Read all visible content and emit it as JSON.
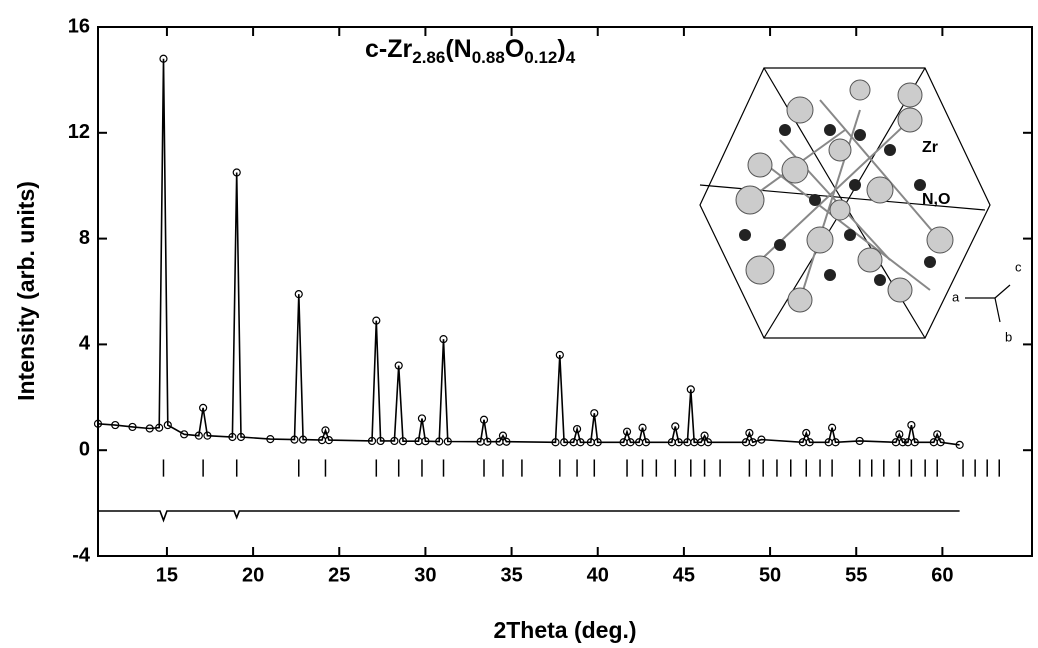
{
  "chart_data": {
    "type": "line",
    "title_parts": [
      "c-Zr",
      "2.86",
      "(N",
      "0.88",
      "O",
      "0.12",
      ")",
      "4"
    ],
    "xlabel": "2Theta (deg.)",
    "ylabel": "Intensity (arb. units)",
    "xlim": [
      11,
      65.2
    ],
    "ylim": [
      -4,
      16
    ],
    "xticks": [
      15,
      20,
      25,
      30,
      35,
      40,
      45,
      50,
      55,
      60
    ],
    "yticks": [
      -4,
      0,
      4,
      8,
      12,
      16
    ],
    "series": [
      {
        "color": "#000000",
        "x": [
          11,
          12,
          13,
          14,
          14.55,
          14.8,
          15.05,
          16,
          16.85,
          17.1,
          17.35,
          18.8,
          19.05,
          19.3,
          21,
          22.4,
          22.65,
          22.9,
          24,
          24.2,
          24.4,
          26.9,
          27.15,
          27.4,
          28.2,
          28.45,
          28.7,
          29.6,
          29.8,
          30,
          30.8,
          31.05,
          31.3,
          33.2,
          33.4,
          33.6,
          34.3,
          34.5,
          34.7,
          37.55,
          37.8,
          38.05,
          38.6,
          38.8,
          39,
          39.6,
          39.8,
          40,
          41.5,
          41.7,
          41.9,
          42.4,
          42.6,
          42.8,
          44.3,
          44.5,
          44.7,
          45.2,
          45.4,
          45.6,
          46,
          46.2,
          46.4,
          48.6,
          48.8,
          49,
          49.5,
          51.9,
          52.1,
          52.3,
          53.4,
          53.6,
          53.8,
          55.2,
          57.3,
          57.5,
          57.7,
          58,
          58.2,
          58.4,
          59.5,
          59.7,
          59.9,
          61
        ],
        "values": [
          1.0,
          0.95,
          0.88,
          0.82,
          0.85,
          14.8,
          0.95,
          0.6,
          0.55,
          1.6,
          0.55,
          0.5,
          10.5,
          0.5,
          0.42,
          0.4,
          5.9,
          0.4,
          0.38,
          0.75,
          0.38,
          0.35,
          4.9,
          0.35,
          0.35,
          3.2,
          0.34,
          0.34,
          1.2,
          0.34,
          0.33,
          4.2,
          0.33,
          0.32,
          1.15,
          0.32,
          0.32,
          0.55,
          0.32,
          0.3,
          3.6,
          0.3,
          0.3,
          0.8,
          0.3,
          0.3,
          1.4,
          0.3,
          0.3,
          0.7,
          0.3,
          0.3,
          0.85,
          0.3,
          0.3,
          0.9,
          0.3,
          0.3,
          2.3,
          0.3,
          0.3,
          0.55,
          0.3,
          0.3,
          0.65,
          0.3,
          0.4,
          0.3,
          0.65,
          0.3,
          0.3,
          0.85,
          0.3,
          0.35,
          0.3,
          0.6,
          0.3,
          0.3,
          0.95,
          0.3,
          0.3,
          0.6,
          0.3,
          0.2
        ]
      },
      {
        "color": "#000000",
        "x": [
          11,
          14.6,
          14.8,
          15.0,
          18.9,
          19.05,
          19.2,
          61
        ],
        "values": [
          -2.3,
          -2.3,
          -2.65,
          -2.3,
          -2.3,
          -2.55,
          -2.3,
          -2.3
        ]
      }
    ],
    "reflections": [
      14.8,
      17.1,
      19.05,
      22.65,
      24.2,
      27.15,
      28.45,
      29.8,
      31.05,
      33.4,
      34.5,
      35.6,
      37.8,
      38.8,
      39.8,
      41.7,
      42.6,
      43.4,
      44.5,
      45.4,
      46.2,
      47.1,
      48.8,
      49.6,
      50.4,
      51.2,
      52.1,
      52.9,
      53.6,
      55.2,
      55.9,
      56.6,
      57.5,
      58.2,
      59.0,
      59.7,
      61.2,
      61.9,
      62.6,
      63.3
    ],
    "inset_labels": [
      "Zr",
      "N,O",
      "a",
      "b",
      "c"
    ]
  }
}
